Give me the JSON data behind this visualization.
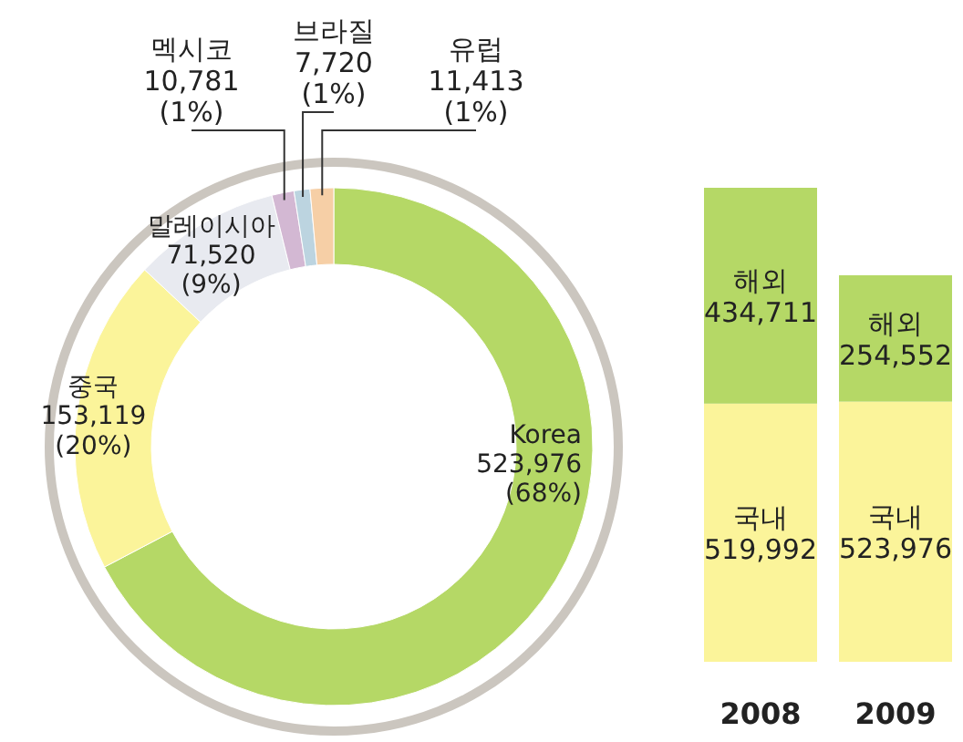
{
  "chart_data": [
    {
      "type": "donut",
      "categories": [
        "Korea",
        "중국",
        "말레이시아",
        "멕시코",
        "브라질",
        "유럽"
      ],
      "values": [
        523976,
        153119,
        71520,
        10781,
        7720,
        11413
      ],
      "value_labels": [
        "523,976 (68%)",
        "153,119 (20%)",
        "71,520 (9%)",
        "10,781 (1%)",
        "7,720 (1%)",
        "11,413 (1%)"
      ],
      "colors": [
        "#b5d866",
        "#fbf49a",
        "#e8eaf0",
        "#d3b8d3",
        "#bcd4e0",
        "#f6cfa6"
      ]
    },
    {
      "type": "bar",
      "stacked": true,
      "categories": [
        "2008",
        "2009"
      ],
      "series": [
        {
          "name": "국내",
          "color": "#fbf49a",
          "values": [
            519992,
            523976
          ],
          "value_labels": [
            "519,992",
            "523,976"
          ]
        },
        {
          "name": "해외",
          "color": "#b5d866",
          "values": [
            434711,
            254552
          ],
          "value_labels": [
            "434,711",
            "254,552"
          ]
        }
      ]
    }
  ]
}
